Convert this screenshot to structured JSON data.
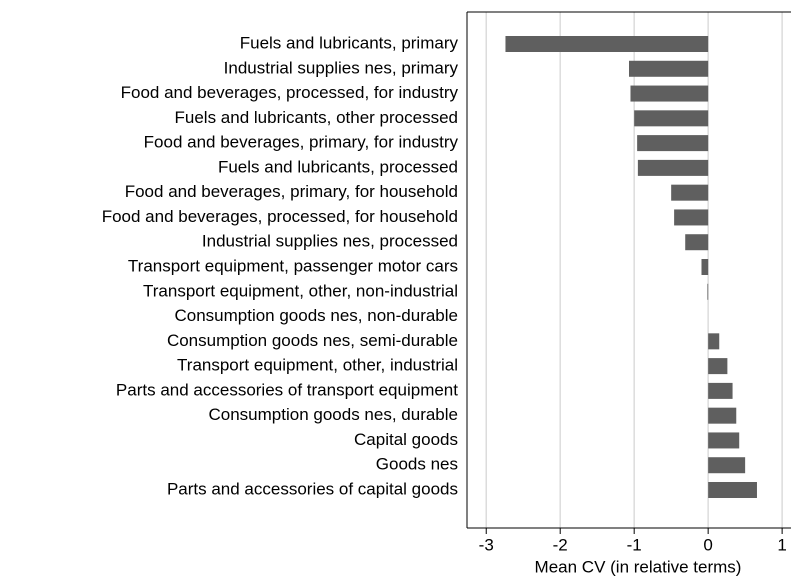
{
  "chart_data": {
    "type": "barh",
    "categories": [
      "Fuels and lubricants, primary",
      "Industrial supplies nes, primary",
      "Food and beverages, processed, for industry",
      "Fuels and lubricants, other processed",
      "Food and beverages, primary, for industry",
      "Fuels and lubricants, processed",
      "Food and beverages, primary, for household",
      "Food and beverages, processed, for household",
      "Industrial supplies nes, processed",
      "Transport equipment, passenger motor cars",
      "Transport equipment, other, non-industrial",
      "Consumption goods nes, non-durable",
      "Consumption goods nes, semi-durable",
      "Transport equipment, other, industrial",
      "Parts and accessories of transport equipment",
      "Consumption goods nes, durable",
      "Capital goods",
      "Goods nes",
      "Parts and accessories of capital goods"
    ],
    "values": [
      -2.74,
      -1.07,
      -1.05,
      -1.0,
      -0.96,
      -0.95,
      -0.5,
      -0.46,
      -0.31,
      -0.09,
      -0.01,
      0,
      0.15,
      0.26,
      0.33,
      0.38,
      0.42,
      0.5,
      0.66
    ],
    "color": "#5f5f5f",
    "xlabel": "Mean CV (in relative terms)",
    "xlim": [
      -3.26,
      1.12
    ],
    "xticks": [
      -3,
      -2,
      -1,
      0,
      1
    ],
    "grid": true
  }
}
